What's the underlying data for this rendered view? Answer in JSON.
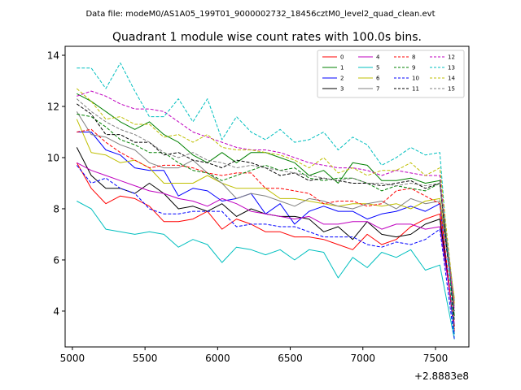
{
  "chart_data": {
    "type": "line",
    "suptitle": "Data file: modeM0/AS1A05_199T01_9000002732_18456cztM0_level2_quad_clean.evt",
    "title": "Quadrant 1 module wise count rates with 100.0s bins.",
    "xlabel": "",
    "ylabel": "",
    "x_offset_label": "+2.8883e8",
    "xlim": [
      4950,
      7730
    ],
    "ylim": [
      2.6,
      14.35
    ],
    "xticks": [
      5000,
      5500,
      6000,
      6500,
      7000,
      7500
    ],
    "yticks": [
      4,
      6,
      8,
      10,
      12,
      14
    ],
    "grid": false,
    "legend_position": "top-right",
    "x": [
      5030,
      5130,
      5230,
      5330,
      5430,
      5530,
      5630,
      5730,
      5830,
      5930,
      6030,
      6130,
      6230,
      6330,
      6430,
      6530,
      6630,
      6730,
      6830,
      6930,
      7030,
      7130,
      7230,
      7330,
      7430,
      7530,
      7630
    ],
    "series": [
      {
        "name": "0",
        "color": "#ff0000",
        "dash": "solid",
        "values": [
          9.8,
          8.8,
          8.2,
          8.5,
          8.4,
          8.1,
          7.5,
          7.5,
          7.6,
          7.9,
          7.2,
          7.6,
          7.4,
          7.1,
          7.1,
          6.9,
          6.9,
          6.8,
          6.6,
          6.4,
          7.0,
          6.6,
          6.8,
          7.3,
          7.6,
          7.8,
          3.2
        ]
      },
      {
        "name": "1",
        "color": "#008000",
        "dash": "solid",
        "values": [
          12.5,
          12.2,
          11.8,
          11.4,
          11.1,
          11.4,
          10.9,
          10.6,
          10.1,
          9.8,
          10.2,
          9.8,
          10.2,
          10.2,
          10.0,
          9.8,
          9.3,
          9.5,
          9.0,
          9.8,
          9.7,
          9.1,
          9.1,
          9.2,
          9.0,
          9.1,
          3.8
        ]
      },
      {
        "name": "2",
        "color": "#0000ff",
        "dash": "solid",
        "values": [
          11.0,
          11.0,
          10.3,
          10.1,
          9.6,
          9.5,
          9.5,
          8.5,
          8.8,
          8.7,
          8.3,
          8.4,
          8.6,
          7.8,
          8.2,
          7.4,
          7.9,
          8.1,
          7.9,
          7.9,
          7.6,
          7.8,
          7.9,
          8.1,
          7.9,
          8.2,
          3.1
        ]
      },
      {
        "name": "3",
        "color": "#000000",
        "dash": "solid",
        "values": [
          10.4,
          9.3,
          8.8,
          8.8,
          8.6,
          9.0,
          8.6,
          8.0,
          8.1,
          7.9,
          8.2,
          7.7,
          8.0,
          7.8,
          7.7,
          7.7,
          7.6,
          7.1,
          7.3,
          6.8,
          7.5,
          7.0,
          6.9,
          7.0,
          7.4,
          7.6,
          3.4
        ]
      },
      {
        "name": "4",
        "color": "#bf00bf",
        "dash": "solid",
        "values": [
          9.8,
          9.5,
          9.3,
          9.1,
          8.9,
          8.7,
          8.6,
          8.4,
          8.3,
          8.1,
          8.4,
          8.2,
          7.9,
          7.8,
          7.7,
          7.6,
          7.7,
          7.4,
          7.4,
          7.5,
          7.5,
          7.2,
          7.4,
          7.4,
          7.2,
          7.3,
          3.5
        ]
      },
      {
        "name": "5",
        "color": "#00bfbf",
        "dash": "solid",
        "values": [
          8.3,
          8.0,
          7.2,
          7.1,
          7.0,
          7.1,
          7.0,
          6.5,
          6.8,
          6.6,
          5.9,
          6.5,
          6.4,
          6.2,
          6.4,
          6.0,
          6.4,
          6.3,
          5.3,
          6.1,
          5.7,
          6.3,
          6.1,
          6.4,
          5.6,
          5.8,
          2.9
        ]
      },
      {
        "name": "6",
        "color": "#bfbf00",
        "dash": "solid",
        "values": [
          11.5,
          10.2,
          10.1,
          9.8,
          9.9,
          9.6,
          9.0,
          9.0,
          9.0,
          9.3,
          9.0,
          8.8,
          8.8,
          8.8,
          8.4,
          8.4,
          8.3,
          8.2,
          8.1,
          8.2,
          8.2,
          8.1,
          8.2,
          8.0,
          8.3,
          8.4,
          4.5
        ]
      },
      {
        "name": "7",
        "color": "#808080",
        "dash": "solid",
        "values": [
          11.8,
          10.9,
          10.8,
          10.5,
          10.3,
          9.8,
          9.6,
          9.6,
          9.9,
          9.4,
          9.0,
          8.4,
          8.6,
          8.5,
          8.3,
          8.1,
          8.4,
          8.3,
          8.1,
          8.0,
          8.2,
          8.3,
          8.0,
          8.4,
          8.2,
          8.3,
          4.2
        ]
      },
      {
        "name": "8",
        "color": "#ff0000",
        "dash": "dashed",
        "values": [
          11.0,
          11.1,
          10.6,
          10.2,
          9.9,
          9.6,
          9.7,
          9.7,
          9.6,
          9.4,
          9.3,
          9.4,
          9.4,
          8.8,
          8.8,
          8.7,
          8.6,
          8.2,
          8.3,
          8.3,
          8.1,
          8.2,
          8.7,
          8.8,
          8.5,
          8.2,
          3.3
        ]
      },
      {
        "name": "9",
        "color": "#008000",
        "dash": "dashed",
        "values": [
          11.7,
          11.6,
          11.2,
          10.7,
          10.5,
          10.2,
          10.2,
          9.8,
          9.5,
          9.4,
          9.1,
          9.3,
          9.5,
          9.7,
          9.5,
          9.6,
          9.2,
          9.1,
          9.2,
          9.2,
          9.0,
          8.7,
          8.9,
          8.8,
          8.7,
          9.0,
          4.0
        ]
      },
      {
        "name": "10",
        "color": "#0000ff",
        "dash": "dashed",
        "values": [
          9.7,
          9.0,
          9.2,
          8.8,
          8.6,
          8.0,
          7.8,
          7.8,
          7.9,
          7.9,
          7.9,
          7.3,
          7.4,
          7.4,
          7.3,
          7.3,
          7.1,
          6.9,
          6.9,
          6.9,
          6.6,
          6.5,
          6.7,
          6.6,
          6.8,
          7.2,
          2.9
        ]
      },
      {
        "name": "11",
        "color": "#000000",
        "dash": "dashed",
        "values": [
          12.1,
          11.7,
          10.9,
          10.9,
          10.6,
          10.6,
          10.1,
          10.2,
          9.9,
          9.8,
          9.6,
          9.9,
          9.8,
          9.6,
          9.3,
          9.4,
          9.1,
          9.2,
          9.1,
          9.0,
          9.0,
          8.9,
          9.0,
          9.1,
          8.8,
          9.0,
          3.6
        ]
      },
      {
        "name": "12",
        "color": "#bf00bf",
        "dash": "dashed",
        "values": [
          12.4,
          12.6,
          12.4,
          12.1,
          11.9,
          11.9,
          11.8,
          11.4,
          11.0,
          10.8,
          10.6,
          10.4,
          10.3,
          10.3,
          10.2,
          10.0,
          9.8,
          9.7,
          9.6,
          9.6,
          9.5,
          9.3,
          9.5,
          9.4,
          9.3,
          9.3,
          4.0
        ]
      },
      {
        "name": "13",
        "color": "#00bfbf",
        "dash": "dashed",
        "values": [
          13.5,
          13.5,
          12.7,
          13.7,
          12.6,
          11.6,
          11.6,
          12.3,
          11.4,
          12.3,
          10.7,
          11.6,
          11.0,
          10.7,
          11.1,
          10.6,
          10.7,
          11.0,
          10.3,
          10.8,
          10.5,
          9.7,
          10.0,
          10.4,
          10.1,
          10.2,
          3.0
        ]
      },
      {
        "name": "14",
        "color": "#bfbf00",
        "dash": "dashed",
        "values": [
          12.7,
          12.2,
          11.5,
          11.6,
          11.3,
          11.3,
          10.8,
          10.9,
          10.6,
          10.9,
          10.4,
          10.3,
          10.3,
          10.2,
          10.1,
          9.9,
          9.6,
          10.0,
          9.4,
          9.6,
          9.3,
          9.5,
          9.5,
          9.8,
          9.3,
          9.6,
          4.3
        ]
      },
      {
        "name": "15",
        "color": "#808080",
        "dash": "dashed",
        "values": [
          12.3,
          11.8,
          11.4,
          11.1,
          10.9,
          10.6,
          10.2,
          10.0,
          10.2,
          9.9,
          9.8,
          9.6,
          9.7,
          9.6,
          9.5,
          9.4,
          9.3,
          9.2,
          9.1,
          9.2,
          9.0,
          9.0,
          8.9,
          9.0,
          8.9,
          9.0,
          4.4
        ]
      }
    ]
  }
}
